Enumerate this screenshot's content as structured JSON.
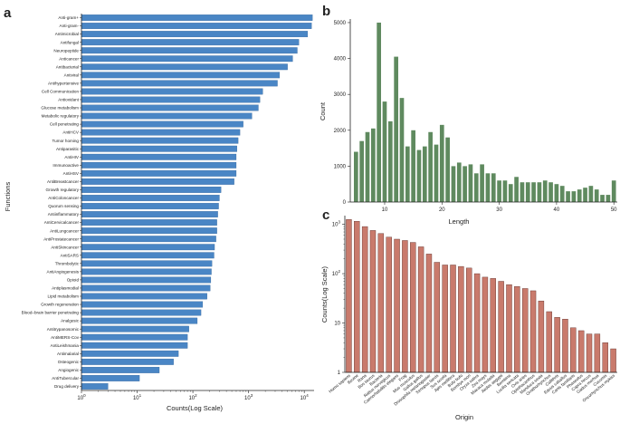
{
  "colors": {
    "panel_a": "#4a86c5",
    "panel_b": "#5f8a5f",
    "panel_c": "#c97a6c",
    "axis": "#222222"
  },
  "chart_data": [
    {
      "panel": "a",
      "type": "bar",
      "orientation": "horizontal",
      "xscale": "log",
      "xlim": [
        1,
        15000
      ],
      "xlabel": "Counts(Log Scale)",
      "ylabel": "Functions",
      "xticks": [
        "10^0",
        "10^1",
        "10^2",
        "10^3",
        "10^4"
      ],
      "categories": [
        "Anti-gram+",
        "Anti-gram-",
        "Antimicrobial",
        "Antifungal",
        "Neuropeptide",
        "Anticancer",
        "Antibacterial",
        "Antiviral",
        "Antihypertensive",
        "Cell Communication",
        "Antioxidant",
        "Glucose metabolism",
        "Metabolic regulatory",
        "Cell penetrating",
        "AntiHCV",
        "Tumor homing",
        "Antiparasitic",
        "AntiHIV",
        "Immunoactive",
        "AntiHSV",
        "AntiBreastcancer",
        "Growth regulatory",
        "AntiColoncancer",
        "Quorum sensing",
        "Antiinflammatory",
        "AntiCervicalcancer",
        "AntiLungcancer",
        "AntiProstatecancer",
        "AntiSkincancer",
        "AntiSARS",
        "Thrombolytic",
        "AntiAngiogenesis",
        "Opioid",
        "Antiplasmodial",
        "Lipid metabolism",
        "Growth regeneration",
        "Blood–brain barrier penetrating",
        "Analgesic",
        "Antitrypanosomic",
        "AntiMERS-Cov",
        "AntiLeishmania",
        "Antimalarial",
        "Osteogenic",
        "Angiogenic",
        "AntiTubercular",
        "Drug delivery"
      ],
      "values": [
        14000,
        13500,
        11500,
        8000,
        7500,
        6200,
        5000,
        3600,
        3300,
        1800,
        1600,
        1500,
        1150,
        800,
        700,
        650,
        620,
        600,
        600,
        600,
        550,
        320,
        300,
        290,
        280,
        270,
        270,
        260,
        245,
        240,
        220,
        215,
        210,
        205,
        180,
        150,
        140,
        120,
        85,
        80,
        80,
        55,
        45,
        25,
        11,
        3
      ]
    },
    {
      "panel": "b",
      "type": "bar",
      "xlabel": "Length",
      "ylabel": "Count",
      "xlim": [
        4,
        50.6
      ],
      "ylim": [
        0,
        5100
      ],
      "xticks": [
        10,
        20,
        30,
        40,
        50
      ],
      "yticks": [
        0,
        1000,
        2000,
        3000,
        4000,
        5000
      ],
      "x": [
        5,
        6,
        7,
        8,
        9,
        10,
        11,
        12,
        13,
        14,
        15,
        16,
        17,
        18,
        19,
        20,
        21,
        22,
        23,
        24,
        25,
        26,
        27,
        28,
        29,
        30,
        31,
        32,
        33,
        34,
        35,
        36,
        37,
        38,
        39,
        40,
        41,
        42,
        43,
        44,
        45,
        46,
        47,
        48,
        49,
        50
      ],
      "values": [
        1400,
        1700,
        1950,
        2050,
        5000,
        2800,
        2250,
        4050,
        2900,
        1550,
        2000,
        1450,
        1550,
        1950,
        1600,
        2150,
        1800,
        1000,
        1100,
        1000,
        1050,
        800,
        1050,
        800,
        800,
        600,
        600,
        500,
        700,
        550,
        550,
        550,
        550,
        600,
        550,
        500,
        450,
        300,
        300,
        350,
        400,
        450,
        350,
        200,
        200,
        600
      ]
    },
    {
      "panel": "c",
      "type": "bar",
      "yscale": "log",
      "ylim": [
        1,
        1500
      ],
      "xlabel": "Origin",
      "ylabel": "Counts(Log Scale)",
      "yticks": [
        "1",
        "10",
        "10^2",
        "10^3"
      ],
      "categories": [
        "Homo sapiens",
        "Bovine",
        "Rana",
        "Bos taurus",
        "Bacteria",
        "Rattus norvegicus",
        "Caenorhabditis elegans",
        "Frog",
        "Mus musculus",
        "Gallus gallus",
        "Drosophila melanogaster",
        "Xenopus laevis",
        "Sus scrofa",
        "Apis mellifera",
        "Bufo bufo",
        "Bombyx mori",
        "Oryza sativa",
        "Zea mays",
        "Macaca mulatta",
        "Aedes aegypti",
        "Bombina",
        "Lucilia sericata",
        "Ovis aries",
        "Opisthacanthus",
        "Manduca sexta",
        "Ornithorhynchus",
        "Callithrix",
        "Equus caballus",
        "Canis familiaris",
        "Phaseolus",
        "Capra hircus",
        "Gadus morhua",
        "Cucumis",
        "Oncorhynchus mykiss"
      ],
      "values": [
        1250,
        1150,
        900,
        750,
        650,
        550,
        500,
        470,
        430,
        350,
        250,
        170,
        150,
        150,
        140,
        130,
        100,
        85,
        80,
        70,
        60,
        55,
        50,
        45,
        28,
        17,
        13,
        12,
        8,
        7,
        6,
        6,
        4,
        3
      ]
    }
  ]
}
